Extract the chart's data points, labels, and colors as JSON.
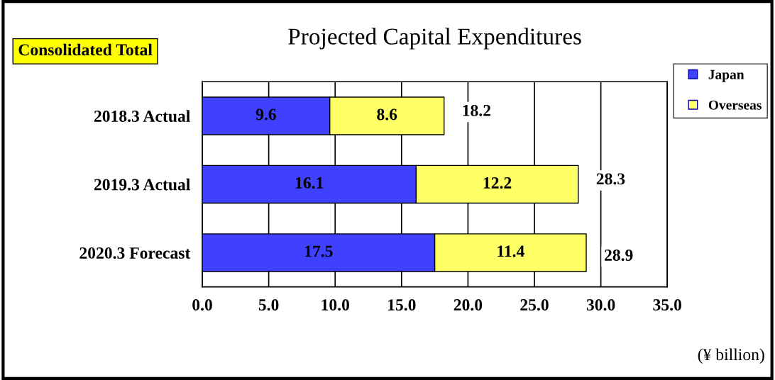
{
  "chart_data": {
    "type": "bar",
    "orientation": "horizontal",
    "stacked": true,
    "title": "Projected Capital Expenditures",
    "xlabel": "(¥ billion)",
    "categories": [
      "2018.3 Actual",
      "2019.3 Actual",
      "2020.3 Forecast"
    ],
    "series": [
      {
        "name": "Japan",
        "color": "#4040ff",
        "values": [
          9.6,
          16.1,
          17.5
        ]
      },
      {
        "name": "Overseas",
        "color": "#ffff66",
        "values": [
          8.6,
          12.2,
          11.4
        ]
      }
    ],
    "totals": [
      "18.2",
      "28.3",
      "28.9"
    ],
    "data_labels": true,
    "xlim": [
      0,
      35
    ],
    "xticks": [
      {
        "value": 0,
        "label": "0.0"
      },
      {
        "value": 5,
        "label": "5.0"
      },
      {
        "value": 10,
        "label": "10.0"
      },
      {
        "value": 15,
        "label": "15.0"
      },
      {
        "value": 20,
        "label": "20.0"
      },
      {
        "value": 25,
        "label": "25.0"
      },
      {
        "value": 30,
        "label": "30.0"
      },
      {
        "value": 35,
        "label": "35.0"
      }
    ],
    "grid": "x",
    "legend": "top right",
    "annotations": [
      "Consolidated Total"
    ]
  }
}
